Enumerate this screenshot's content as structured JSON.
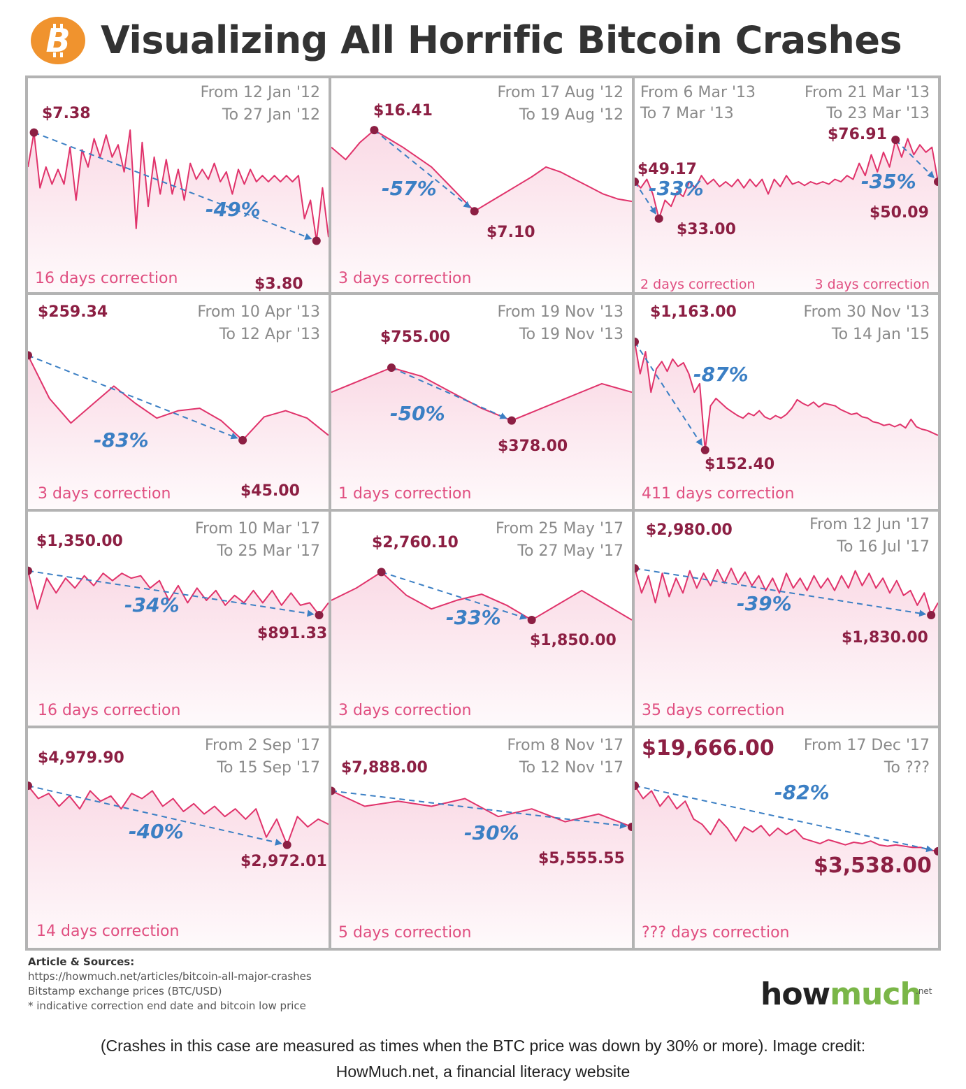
{
  "header": {
    "title": "Visualizing All Horrific Bitcoin Crashes",
    "logo_icon": "bitcoin-icon"
  },
  "colors": {
    "line": "#e0336b",
    "fill": "#fadbe6",
    "arrow": "#3b7fc4",
    "price": "#8c1f43",
    "correction": "#e04e80",
    "date": "#8a8a8a",
    "bitcoin": "#f0932e"
  },
  "chart_data": [
    {
      "type": "line",
      "from": "From 12 Jan '12",
      "to": "To 27 Jan '12",
      "peak": "$7.38",
      "low": "$3.80",
      "change": "-49%",
      "correction": "16 days correction",
      "y": [
        0.62,
        0.9,
        0.45,
        0.62,
        0.48,
        0.6,
        0.48,
        0.78,
        0.35,
        0.76,
        0.62,
        0.85,
        0.7,
        0.88,
        0.7,
        0.8,
        0.58,
        0.92,
        0.12,
        0.82,
        0.3,
        0.7,
        0.4,
        0.68,
        0.4,
        0.6,
        0.35,
        0.65,
        0.52,
        0.6,
        0.52,
        0.65,
        0.5,
        0.58,
        0.4,
        0.6,
        0.48,
        0.6,
        0.5,
        0.55,
        0.5,
        0.55,
        0.5,
        0.55,
        0.5,
        0.55,
        0.2,
        0.35,
        0.02,
        0.45,
        0.05
      ],
      "peak_index": 1,
      "low_index": 48,
      "peak_value": 7.38,
      "low_value": 3.8
    },
    {
      "type": "line",
      "from": "From 17 Aug '12",
      "to": "To 19 Aug '12",
      "peak": "$16.41",
      "low": "$7.10",
      "change": "-57%",
      "correction": "3 days correction",
      "y": [
        0.78,
        0.68,
        0.82,
        0.92,
        0.85,
        0.78,
        0.7,
        0.62,
        0.5,
        0.38,
        0.26,
        0.33,
        0.4,
        0.47,
        0.54,
        0.62,
        0.58,
        0.52,
        0.46,
        0.4,
        0.36,
        0.34
      ],
      "peak_index": 3,
      "low_index": 10,
      "peak_value": 16.41,
      "low_value": 7.1
    },
    {
      "type": "line",
      "from": "From 6 Mar '13",
      "to": "To 7 Mar '13",
      "from2": "From 21 Mar '13",
      "to2": "To 23 Mar '13",
      "peak": "$49.17",
      "low": "$33.00",
      "peak2": "$76.91",
      "low2": "$50.09",
      "change": "-33%",
      "change2": "-35%",
      "correction": "2 days correction",
      "correction2": "3 days correction",
      "y": [
        0.5,
        0.45,
        0.52,
        0.4,
        0.2,
        0.35,
        0.3,
        0.42,
        0.38,
        0.5,
        0.45,
        0.55,
        0.48,
        0.52,
        0.46,
        0.5,
        0.46,
        0.52,
        0.45,
        0.52,
        0.46,
        0.52,
        0.4,
        0.52,
        0.46,
        0.55,
        0.48,
        0.5,
        0.47,
        0.5,
        0.48,
        0.5,
        0.48,
        0.52,
        0.5,
        0.55,
        0.52,
        0.65,
        0.55,
        0.72,
        0.58,
        0.74,
        0.62,
        0.84,
        0.7,
        0.85,
        0.72,
        0.8,
        0.74,
        0.78,
        0.5
      ],
      "peak_index": 0,
      "low_index": 4,
      "peak2_index": 43,
      "low2_index": 50,
      "peak_value": 49.17,
      "low_value": 33.0,
      "peak2_value": 76.91,
      "low2_value": 50.09
    },
    {
      "type": "line",
      "from": "From 10 Apr '13",
      "to": "To 12 Apr '13",
      "peak": "$259.34",
      "low": "$45.00",
      "change": "-83%",
      "correction": "3 days correction",
      "y": [
        0.85,
        0.5,
        0.3,
        0.45,
        0.6,
        0.46,
        0.34,
        0.4,
        0.42,
        0.32,
        0.16,
        0.35,
        0.4,
        0.34,
        0.2
      ],
      "peak_index": 0,
      "low_index": 10,
      "peak_value": 259.34,
      "low_value": 45.0
    },
    {
      "type": "line",
      "from": "From 19 Nov '13",
      "to": "To 19 Nov '13",
      "peak": "$755.00",
      "low": "$378.00",
      "change": "-50%",
      "correction": "1 days correction",
      "y": [
        0.55,
        0.65,
        0.75,
        0.68,
        0.55,
        0.42,
        0.32,
        0.42,
        0.52,
        0.62,
        0.55
      ],
      "peak_index": 2,
      "low_index": 6,
      "peak_value": 755.0,
      "low_value": 378.0
    },
    {
      "type": "line",
      "from": "From 30 Nov '13",
      "to": "To 14 Jan '15",
      "peak": "$1,163.00",
      "low": "$152.40",
      "change": "-87%",
      "correction": "411 days correction",
      "y": [
        0.96,
        0.7,
        0.88,
        0.55,
        0.74,
        0.8,
        0.72,
        0.82,
        0.76,
        0.79,
        0.7,
        0.55,
        0.62,
        0.08,
        0.44,
        0.5,
        0.46,
        0.42,
        0.39,
        0.36,
        0.34,
        0.38,
        0.36,
        0.4,
        0.35,
        0.33,
        0.36,
        0.34,
        0.37,
        0.42,
        0.49,
        0.46,
        0.44,
        0.47,
        0.43,
        0.46,
        0.45,
        0.44,
        0.41,
        0.39,
        0.37,
        0.38,
        0.35,
        0.34,
        0.31,
        0.3,
        0.28,
        0.29,
        0.27,
        0.29,
        0.26,
        0.33,
        0.27,
        0.25,
        0.24,
        0.22,
        0.2
      ],
      "peak_index": 0,
      "low_index": 13,
      "peak_value": 1163.0,
      "low_value": 152.4
    },
    {
      "type": "line",
      "from": "From 10 Mar '17",
      "to": "To 25 Mar '17",
      "peak": "$1,350.00",
      "low": "$891.33",
      "change": "-34%",
      "correction": "16 days correction",
      "y": [
        0.86,
        0.55,
        0.8,
        0.68,
        0.8,
        0.72,
        0.82,
        0.74,
        0.84,
        0.78,
        0.84,
        0.8,
        0.82,
        0.72,
        0.78,
        0.62,
        0.74,
        0.6,
        0.72,
        0.62,
        0.7,
        0.58,
        0.66,
        0.6,
        0.7,
        0.6,
        0.7,
        0.58,
        0.68,
        0.58,
        0.6,
        0.5,
        0.6
      ],
      "peak_index": 0,
      "low_index": 31,
      "peak_value": 1350.0,
      "low_value": 891.33
    },
    {
      "type": "line",
      "from": "From 25 May '17",
      "to": "To 27 May '17",
      "peak": "$2,760.10",
      "low": "$1,850.00",
      "change": "-33%",
      "correction": "3 days correction",
      "y": [
        0.62,
        0.72,
        0.85,
        0.66,
        0.55,
        0.62,
        0.67,
        0.58,
        0.46,
        0.58,
        0.7,
        0.58,
        0.46
      ],
      "peak_index": 2,
      "low_index": 8,
      "peak_value": 2760.1,
      "low_value": 1850.0
    },
    {
      "type": "line",
      "from": "From 12 Jun '17",
      "to": "To 16 Jul '17",
      "peak": "$2,980.00",
      "low": "$1,830.00",
      "change": "-39%",
      "correction": "35 days correction",
      "y": [
        0.88,
        0.68,
        0.82,
        0.6,
        0.84,
        0.65,
        0.8,
        0.68,
        0.86,
        0.72,
        0.84,
        0.74,
        0.87,
        0.76,
        0.88,
        0.76,
        0.85,
        0.74,
        0.82,
        0.7,
        0.8,
        0.68,
        0.84,
        0.72,
        0.8,
        0.7,
        0.82,
        0.72,
        0.8,
        0.7,
        0.82,
        0.72,
        0.86,
        0.74,
        0.84,
        0.72,
        0.8,
        0.68,
        0.78,
        0.66,
        0.7,
        0.58,
        0.68,
        0.5,
        0.6
      ],
      "peak_index": 0,
      "low_index": 43,
      "peak_value": 2980.0,
      "low_value": 1830.0
    },
    {
      "type": "line",
      "from": "From 2 Sep '17",
      "to": "To 15 Sep '17",
      "peak": "$4,979.90",
      "low": "$2,972.01",
      "change": "-40%",
      "correction": "14 days correction",
      "y": [
        0.88,
        0.78,
        0.82,
        0.72,
        0.8,
        0.7,
        0.84,
        0.76,
        0.8,
        0.7,
        0.82,
        0.78,
        0.84,
        0.72,
        0.78,
        0.68,
        0.74,
        0.66,
        0.72,
        0.64,
        0.7,
        0.62,
        0.7,
        0.48,
        0.62,
        0.42,
        0.64,
        0.56,
        0.62,
        0.58
      ],
      "peak_index": 0,
      "low_index": 25,
      "peak_value": 4979.9,
      "low_value": 2972.01
    },
    {
      "type": "line",
      "from": "From 8 Nov '17",
      "to": "To 12 Nov '17",
      "peak": "$7,888.00",
      "low": "$5,555.55",
      "change": "-30%",
      "correction": "5 days correction",
      "y": [
        0.84,
        0.72,
        0.76,
        0.72,
        0.78,
        0.64,
        0.7,
        0.6,
        0.66,
        0.56
      ],
      "peak_index": 0,
      "low_index": 9,
      "peak_value": 7888.0,
      "low_value": 5555.55
    },
    {
      "type": "line",
      "from": "From 17 Dec '17",
      "to": "To ???",
      "peak": "$19,666.00",
      "low": "$3,538.00",
      "change": "-82%",
      "correction": "??? days correction",
      "y": [
        0.88,
        0.78,
        0.84,
        0.72,
        0.8,
        0.7,
        0.76,
        0.62,
        0.58,
        0.5,
        0.62,
        0.55,
        0.45,
        0.56,
        0.52,
        0.57,
        0.49,
        0.55,
        0.5,
        0.54,
        0.47,
        0.45,
        0.43,
        0.46,
        0.44,
        0.42,
        0.44,
        0.43,
        0.45,
        0.42,
        0.41,
        0.42,
        0.41,
        0.4,
        0.4,
        0.38,
        0.37
      ],
      "peak_index": 0,
      "low_index": 36,
      "peak_value": 19666.0,
      "low_value": 3538.0
    }
  ],
  "footer": {
    "heading": "Article & Sources:",
    "source_url": "https://howmuch.net/articles/bitcoin-all-major-crashes",
    "source_exchange": "Bitstamp exchange prices (BTC/USD)",
    "note": "* indicative correction end date and bitcoin low price",
    "brand_how": "how",
    "brand_much": "much",
    "brand_net": ".net"
  },
  "caption": {
    "line1": "(Crashes in this case are measured as times when the BTC price was down by 30% or more). Image credit:",
    "line2": "HowMuch.net, a financial literacy website"
  }
}
